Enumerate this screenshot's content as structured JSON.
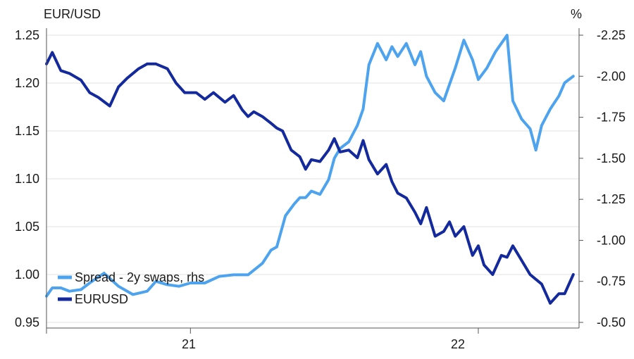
{
  "chart_data": {
    "type": "line",
    "left_axis_label": "EUR/USD",
    "right_axis_label": "%",
    "left_ylim": [
      0.95,
      1.25
    ],
    "right_ylim": [
      -2.25,
      -0.5
    ],
    "left_ticks": [
      "1.25",
      "1.20",
      "1.15",
      "1.10",
      "1.05",
      "1.00",
      "0.95"
    ],
    "left_tick_values": [
      1.25,
      1.2,
      1.15,
      1.1,
      1.05,
      1.0,
      0.95
    ],
    "right_ticks": [
      "-0.50",
      "-0.75",
      "-1.00",
      "-1.25",
      "-1.50",
      "-1.75",
      "-2.00",
      "-2.25"
    ],
    "right_tick_values": [
      -0.5,
      -0.75,
      -1.0,
      -1.25,
      -1.5,
      -1.75,
      -2.0,
      -2.25
    ],
    "x_range": [
      2020.5,
      2022.35
    ],
    "x_ticks": [
      "21",
      "22"
    ],
    "x_tick_values": [
      2021.0,
      2022.0
    ],
    "grid": "horizontal",
    "legend_placement": "bottom-left",
    "series": [
      {
        "name": "Spread - 2y swaps, rhs",
        "axis": "right",
        "color": "#4da3ee",
        "x": [
          2020.5,
          2020.52,
          2020.55,
          2020.58,
          2020.62,
          2020.65,
          2020.7,
          2020.75,
          2020.8,
          2020.85,
          2020.88,
          2020.92,
          2020.96,
          2021.0,
          2021.05,
          2021.1,
          2021.15,
          2021.2,
          2021.25,
          2021.28,
          2021.3,
          2021.33,
          2021.36,
          2021.38,
          2021.4,
          2021.42,
          2021.45,
          2021.48,
          2021.5,
          2021.52,
          2021.55,
          2021.58,
          2021.6,
          2021.62,
          2021.65,
          2021.68,
          2021.7,
          2021.72,
          2021.75,
          2021.78,
          2021.8,
          2021.82,
          2021.85,
          2021.88,
          2021.9,
          2021.92,
          2021.95,
          2021.98,
          2022.0,
          2022.03,
          2022.06,
          2022.08,
          2022.1,
          2022.12,
          2022.15,
          2022.18,
          2022.2,
          2022.22,
          2022.25,
          2022.28,
          2022.3,
          2022.33
        ],
        "values": [
          -0.66,
          -0.71,
          -0.71,
          -0.69,
          -0.7,
          -0.74,
          -0.8,
          -0.72,
          -0.67,
          -0.69,
          -0.75,
          -0.73,
          -0.72,
          -0.74,
          -0.74,
          -0.78,
          -0.79,
          -0.79,
          -0.86,
          -0.94,
          -0.96,
          -1.15,
          -1.22,
          -1.26,
          -1.26,
          -1.3,
          -1.28,
          -1.37,
          -1.5,
          -1.56,
          -1.6,
          -1.7,
          -1.8,
          -2.07,
          -2.2,
          -2.1,
          -2.18,
          -2.12,
          -2.2,
          -2.07,
          -2.15,
          -2.0,
          -1.9,
          -1.85,
          -1.95,
          -2.05,
          -2.22,
          -2.1,
          -1.98,
          -2.05,
          -2.15,
          -2.2,
          -2.25,
          -1.85,
          -1.74,
          -1.68,
          -1.55,
          -1.7,
          -1.8,
          -1.88,
          -1.96,
          -2.0
        ]
      },
      {
        "name": "EURUSD",
        "axis": "left",
        "color": "#142a9c",
        "x": [
          2020.5,
          2020.52,
          2020.55,
          2020.58,
          2020.62,
          2020.65,
          2020.68,
          2020.72,
          2020.75,
          2020.78,
          2020.82,
          2020.85,
          2020.88,
          2020.92,
          2020.95,
          2020.98,
          2021.02,
          2021.05,
          2021.08,
          2021.12,
          2021.15,
          2021.18,
          2021.2,
          2021.22,
          2021.25,
          2021.28,
          2021.3,
          2021.32,
          2021.35,
          2021.38,
          2021.4,
          2021.42,
          2021.45,
          2021.48,
          2021.5,
          2021.52,
          2021.55,
          2021.58,
          2021.6,
          2021.62,
          2021.65,
          2021.68,
          2021.7,
          2021.72,
          2021.75,
          2021.78,
          2021.8,
          2021.82,
          2021.85,
          2021.88,
          2021.9,
          2021.92,
          2021.95,
          2021.98,
          2022.0,
          2022.02,
          2022.05,
          2022.08,
          2022.1,
          2022.12,
          2022.15,
          2022.18,
          2022.2,
          2022.22,
          2022.25,
          2022.28,
          2022.3,
          2022.33
        ],
        "values": [
          1.22,
          1.232,
          1.213,
          1.21,
          1.203,
          1.19,
          1.185,
          1.176,
          1.196,
          1.205,
          1.215,
          1.22,
          1.22,
          1.215,
          1.2,
          1.19,
          1.19,
          1.183,
          1.19,
          1.18,
          1.187,
          1.172,
          1.165,
          1.17,
          1.165,
          1.158,
          1.153,
          1.15,
          1.13,
          1.123,
          1.11,
          1.12,
          1.118,
          1.13,
          1.142,
          1.128,
          1.13,
          1.122,
          1.14,
          1.12,
          1.105,
          1.115,
          1.097,
          1.085,
          1.08,
          1.065,
          1.053,
          1.07,
          1.04,
          1.045,
          1.055,
          1.04,
          1.05,
          1.02,
          1.03,
          1.01,
          1.0,
          1.02,
          1.018,
          1.03,
          1.015,
          1.0,
          0.995,
          0.99,
          0.97,
          0.98,
          0.98,
          1.0
        ]
      }
    ]
  }
}
